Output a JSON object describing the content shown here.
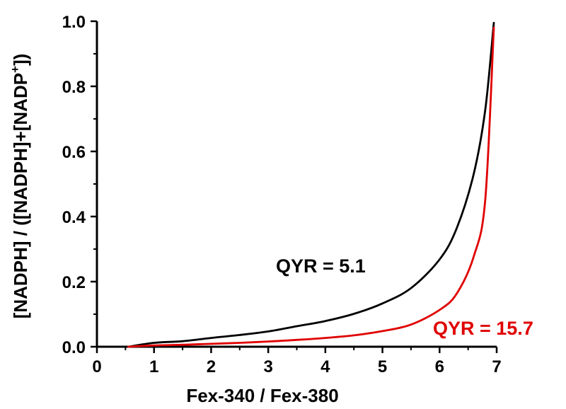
{
  "chart_data": {
    "type": "line",
    "xlabel": "Fex-340 / Fex-380",
    "ylabel_main": "[NADPH] / ([NADPH]+[NADP",
    "ylabel_sup": "+",
    "ylabel_end": "])",
    "xlim": [
      0,
      7
    ],
    "ylim": [
      0,
      1.0
    ],
    "xticks": [
      "0",
      "1",
      "2",
      "3",
      "4",
      "5",
      "6",
      "7"
    ],
    "yticks": [
      "0.0",
      "0.2",
      "0.4",
      "0.6",
      "0.8",
      "1.0"
    ],
    "grid": false,
    "series": [
      {
        "name": "QYR = 5.1",
        "color": "#000000",
        "x": [
          0.55,
          1.0,
          1.5,
          2.0,
          2.5,
          3.0,
          3.5,
          4.0,
          4.5,
          5.0,
          5.5,
          6.0,
          6.3,
          6.6,
          6.8,
          6.95
        ],
        "y": [
          0.0,
          0.012,
          0.017,
          0.027,
          0.036,
          0.047,
          0.063,
          0.079,
          0.101,
          0.133,
          0.18,
          0.268,
          0.364,
          0.532,
          0.728,
          0.995
        ]
      },
      {
        "name": "QYR = 15.7",
        "color": "#e00000",
        "x": [
          0.55,
          1.0,
          1.5,
          2.0,
          2.5,
          3.0,
          3.5,
          4.0,
          4.5,
          5.0,
          5.5,
          6.0,
          6.3,
          6.6,
          6.8,
          6.95
        ],
        "y": [
          0.0,
          0.004,
          0.006,
          0.009,
          0.012,
          0.016,
          0.021,
          0.027,
          0.035,
          0.048,
          0.068,
          0.113,
          0.163,
          0.278,
          0.452,
          0.98
        ]
      }
    ],
    "annotations": [
      {
        "text": "QYR = 5.1",
        "color": "#000000"
      },
      {
        "text": "QYR = 15.7",
        "color": "#e00000"
      }
    ]
  }
}
